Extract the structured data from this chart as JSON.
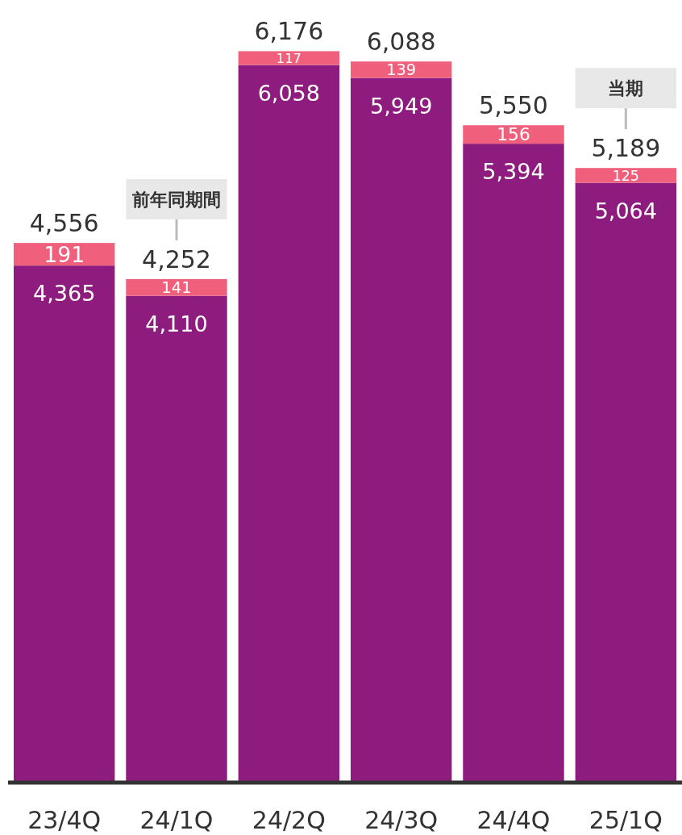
{
  "chart_data": {
    "type": "bar",
    "stacked": true,
    "categories": [
      "23/4Q",
      "24/1Q",
      "24/2Q",
      "24/3Q",
      "24/4Q",
      "25/1Q"
    ],
    "series": [
      {
        "color": "#8e1c7e",
        "values": [
          4365,
          4110,
          6058,
          5949,
          5394,
          5064
        ],
        "value_labels": [
          "4,365",
          "4,110",
          "6,058",
          "5,949",
          "5,394",
          "5,064"
        ]
      },
      {
        "color": "#f0607c",
        "values": [
          191,
          141,
          117,
          139,
          156,
          125
        ],
        "value_labels": [
          "191",
          "141",
          "117",
          "139",
          "156",
          "125"
        ]
      }
    ],
    "totals": [
      "4,556",
      "4,252",
      "6,176",
      "6,088",
      "5,550",
      "5,189"
    ],
    "tick_labels": "x",
    "annotations": [
      {
        "text": "前年同期間",
        "x": "24/1Q"
      },
      {
        "text": "当期",
        "x": "25/1Q"
      }
    ]
  }
}
